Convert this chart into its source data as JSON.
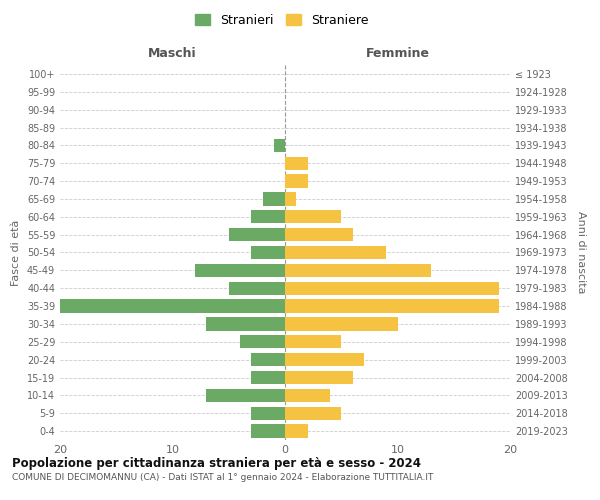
{
  "age_groups": [
    "0-4",
    "5-9",
    "10-14",
    "15-19",
    "20-24",
    "25-29",
    "30-34",
    "35-39",
    "40-44",
    "45-49",
    "50-54",
    "55-59",
    "60-64",
    "65-69",
    "70-74",
    "75-79",
    "80-84",
    "85-89",
    "90-94",
    "95-99",
    "100+"
  ],
  "birth_years": [
    "2019-2023",
    "2014-2018",
    "2009-2013",
    "2004-2008",
    "1999-2003",
    "1994-1998",
    "1989-1993",
    "1984-1988",
    "1979-1983",
    "1974-1978",
    "1969-1973",
    "1964-1968",
    "1959-1963",
    "1954-1958",
    "1949-1953",
    "1944-1948",
    "1939-1943",
    "1934-1938",
    "1929-1933",
    "1924-1928",
    "≤ 1923"
  ],
  "males": [
    3,
    3,
    7,
    3,
    3,
    4,
    7,
    20,
    5,
    8,
    3,
    5,
    3,
    2,
    0,
    0,
    1,
    0,
    0,
    0,
    0
  ],
  "females": [
    2,
    5,
    4,
    6,
    7,
    5,
    10,
    19,
    19,
    13,
    9,
    6,
    5,
    1,
    2,
    2,
    0,
    0,
    0,
    0,
    0
  ],
  "male_color": "#6aaa64",
  "female_color": "#f5c242",
  "male_label": "Stranieri",
  "female_label": "Straniere",
  "title": "Popolazione per cittadinanza straniera per età e sesso - 2024",
  "subtitle": "COMUNE DI DECIMOMANNU (CA) - Dati ISTAT al 1° gennaio 2024 - Elaborazione TUTTITALIA.IT",
  "xlabel_left": "Maschi",
  "xlabel_right": "Femmine",
  "ylabel_left": "Fasce di età",
  "ylabel_right": "Anni di nascita",
  "xlim": 20,
  "background_color": "#ffffff",
  "grid_color": "#cccccc"
}
